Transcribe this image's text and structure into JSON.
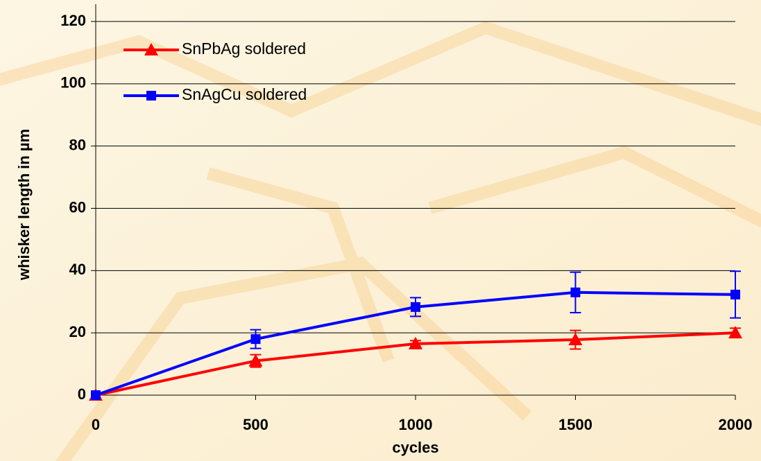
{
  "chart_data": {
    "type": "line",
    "x_label": "cycles",
    "y_label": "whisker length in µm",
    "x": [
      0,
      500,
      1000,
      1500,
      2000
    ],
    "xlim": [
      0,
      2000
    ],
    "xticks": [
      0,
      500,
      1000,
      1500,
      2000
    ],
    "ylim": [
      0,
      120
    ],
    "yticks": [
      0,
      20,
      40,
      60,
      80,
      100,
      120
    ],
    "grid": true,
    "legend": "upper left",
    "series": [
      {
        "name": "SnPbAg soldered",
        "color": "#ff0000",
        "marker": "triangle",
        "values": [
          0,
          11,
          16.5,
          17.8,
          20
        ],
        "errors": [
          0,
          2,
          1,
          3,
          1.5
        ]
      },
      {
        "name": "SnAgCu soldered",
        "color": "#0000ff",
        "marker": "square",
        "values": [
          0,
          18,
          28.3,
          33,
          32.3
        ],
        "errors": [
          0,
          3,
          3,
          6.5,
          7.5
        ]
      }
    ]
  }
}
